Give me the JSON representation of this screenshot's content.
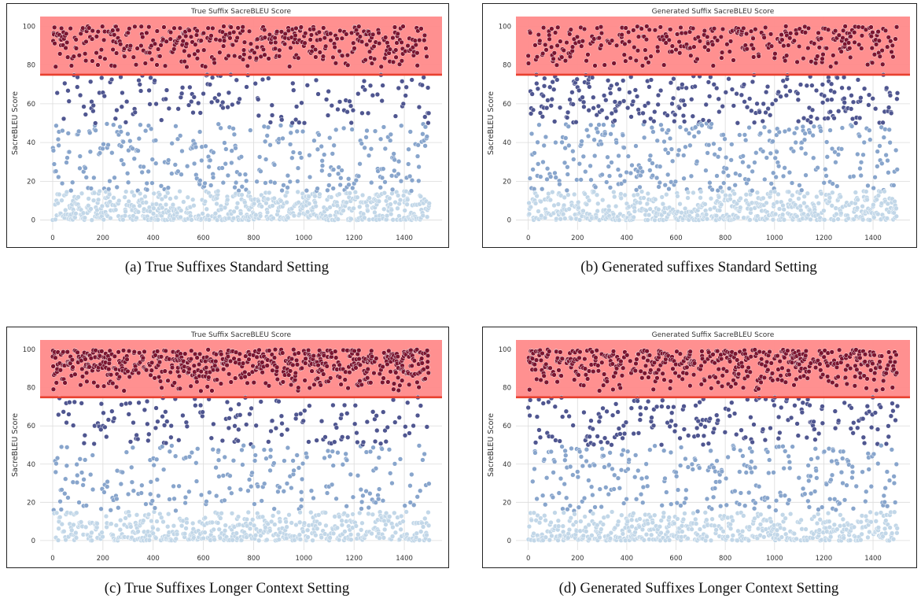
{
  "panels": [
    {
      "caption": "(a) True Suffixes Standard Setting"
    },
    {
      "caption": "(b) Generated suffixes Standard Setting"
    },
    {
      "caption": "(c) True Suffixes Longer Context Setting"
    },
    {
      "caption": "(d) Generated Suffixes Longer Context Setting"
    }
  ],
  "colors": {
    "band_fill": "#ff8a8a",
    "threshold_line": "#e8412f",
    "point_high": "#7b1530",
    "point_mid": "#4f5690",
    "point_low": "#88a5cc",
    "point_min": "#c2d7e8",
    "grid": "#dcdcdc"
  },
  "chart_data": [
    {
      "type": "scatter",
      "title": "True Suffix SacreBLEU Score",
      "xlabel": "",
      "ylabel": "SacreBLEU Score",
      "xlim": [
        -50,
        1550
      ],
      "ylim": [
        -5,
        105
      ],
      "xticks": [
        0,
        200,
        400,
        600,
        800,
        1000,
        1200,
        1400
      ],
      "yticks": [
        0,
        20,
        40,
        60,
        80,
        100
      ],
      "threshold": 75,
      "highlight_band": [
        75,
        105
      ],
      "grid": true,
      "legend": "none",
      "n_points": 1500,
      "series_distribution": [
        {
          "range": [
            0,
            15
          ],
          "share": 0.43
        },
        {
          "range": [
            15,
            50
          ],
          "share": 0.19
        },
        {
          "range": [
            50,
            75
          ],
          "share": 0.1
        },
        {
          "range": [
            75,
            100
          ],
          "share": 0.28
        }
      ]
    },
    {
      "type": "scatter",
      "title": "Generated Suffix SacreBLEU Score",
      "xlabel": "",
      "ylabel": "SacreBLEU Score",
      "xlim": [
        -50,
        1550
      ],
      "ylim": [
        -5,
        105
      ],
      "xticks": [
        0,
        200,
        400,
        600,
        800,
        1000,
        1200,
        1400
      ],
      "yticks": [
        0,
        20,
        40,
        60,
        80,
        100
      ],
      "threshold": 75,
      "highlight_band": [
        75,
        105
      ],
      "grid": true,
      "legend": "none",
      "n_points": 1500,
      "series_distribution": [
        {
          "range": [
            0,
            15
          ],
          "share": 0.4
        },
        {
          "range": [
            15,
            50
          ],
          "share": 0.22
        },
        {
          "range": [
            50,
            75
          ],
          "share": 0.16
        },
        {
          "range": [
            75,
            100
          ],
          "share": 0.22
        }
      ]
    },
    {
      "type": "scatter",
      "title": "True Suffix SacreBLEU Score",
      "xlabel": "",
      "ylabel": "SacreBLEU Score",
      "xlim": [
        -50,
        1550
      ],
      "ylim": [
        -5,
        105
      ],
      "xticks": [
        0,
        200,
        400,
        600,
        800,
        1000,
        1200,
        1400
      ],
      "yticks": [
        0,
        20,
        40,
        60,
        80,
        100
      ],
      "threshold": 75,
      "highlight_band": [
        75,
        105
      ],
      "grid": true,
      "legend": "none",
      "n_points": 1500,
      "series_distribution": [
        {
          "range": [
            0,
            15
          ],
          "share": 0.33
        },
        {
          "range": [
            15,
            50
          ],
          "share": 0.14
        },
        {
          "range": [
            50,
            75
          ],
          "share": 0.1
        },
        {
          "range": [
            75,
            100
          ],
          "share": 0.43
        }
      ]
    },
    {
      "type": "scatter",
      "title": "Generated Suffix SacreBLEU Score",
      "xlabel": "",
      "ylabel": "SacreBLEU Score",
      "xlim": [
        -50,
        1550
      ],
      "ylim": [
        -5,
        105
      ],
      "xticks": [
        0,
        200,
        400,
        600,
        800,
        1000,
        1200,
        1400
      ],
      "yticks": [
        0,
        20,
        40,
        60,
        80,
        100
      ],
      "threshold": 75,
      "highlight_band": [
        75,
        105
      ],
      "grid": true,
      "legend": "none",
      "n_points": 1500,
      "series_distribution": [
        {
          "range": [
            0,
            15
          ],
          "share": 0.34
        },
        {
          "range": [
            15,
            50
          ],
          "share": 0.18
        },
        {
          "range": [
            50,
            75
          ],
          "share": 0.13
        },
        {
          "range": [
            75,
            100
          ],
          "share": 0.35
        }
      ]
    }
  ]
}
